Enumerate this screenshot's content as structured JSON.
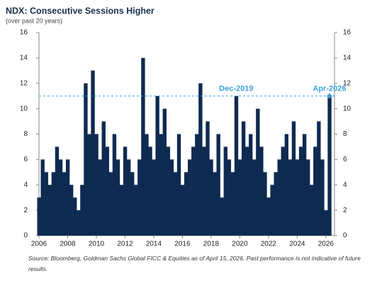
{
  "chart_data": {
    "type": "bar",
    "title": "NDX: Consecutive Sessions Higher",
    "subtitle": "(over past 20 years)",
    "color": "#0e2a50",
    "annotation_color": "#3f9fdc",
    "x": [
      2006.0,
      2006.25,
      2006.5,
      2006.75,
      2007.0,
      2007.25,
      2007.5,
      2007.75,
      2008.0,
      2008.25,
      2008.5,
      2008.75,
      2009.0,
      2009.25,
      2009.5,
      2009.75,
      2010.0,
      2010.25,
      2010.5,
      2010.75,
      2011.0,
      2011.25,
      2011.5,
      2011.75,
      2012.0,
      2012.25,
      2012.5,
      2012.75,
      2013.0,
      2013.25,
      2013.5,
      2013.75,
      2014.0,
      2014.25,
      2014.5,
      2014.75,
      2015.0,
      2015.25,
      2015.5,
      2015.75,
      2016.0,
      2016.25,
      2016.5,
      2016.75,
      2017.0,
      2017.25,
      2017.5,
      2017.75,
      2018.0,
      2018.25,
      2018.5,
      2018.75,
      2019.0,
      2019.25,
      2019.5,
      2019.75,
      2020.0,
      2020.25,
      2020.5,
      2020.75,
      2021.0,
      2021.25,
      2021.5,
      2021.75,
      2022.0,
      2022.25,
      2022.5,
      2022.75,
      2023.0,
      2023.25,
      2023.5,
      2023.75,
      2024.0,
      2024.25,
      2024.5,
      2024.75,
      2025.0,
      2025.25,
      2025.5,
      2025.75,
      2026.0,
      2026.25
    ],
    "values": [
      3,
      6,
      5,
      4,
      5,
      7,
      6,
      5,
      6,
      4,
      3,
      2,
      4,
      12,
      8,
      13,
      8,
      6,
      9,
      7,
      5,
      8,
      6,
      4,
      7,
      6,
      5,
      4,
      6,
      14,
      8,
      7,
      6,
      11,
      8,
      10,
      7,
      6,
      5,
      8,
      4,
      5,
      6,
      7,
      8,
      12,
      7,
      9,
      6,
      5,
      8,
      3,
      7,
      6,
      5,
      11,
      6,
      9,
      7,
      8,
      6,
      10,
      7,
      5,
      3,
      4,
      5,
      6,
      7,
      8,
      6,
      9,
      6,
      7,
      8,
      6,
      4,
      7,
      9,
      6,
      2,
      11
    ],
    "xlim": [
      2006,
      2026.6
    ],
    "xticks": [
      2006,
      2008,
      2010,
      2012,
      2014,
      2016,
      2018,
      2020,
      2022,
      2024,
      2026
    ],
    "ylim": [
      0,
      16
    ],
    "yticks": [
      0,
      2,
      4,
      6,
      8,
      10,
      12,
      14,
      16
    ],
    "y2lim": [
      0,
      16
    ],
    "y2ticks": [
      0,
      2,
      4,
      6,
      8,
      10,
      12,
      14,
      16
    ],
    "hline": 11,
    "annotations": [
      {
        "text": "Dec-2019",
        "x": 2019.75,
        "y": 11
      },
      {
        "text": "Apr-2026",
        "x": 2026.25,
        "y": 11
      }
    ],
    "source": "Source: Bloomberg, Goldman Sachs Global FICC & Equities as of April 15, 2026. Past performance is not indicative of future results."
  }
}
